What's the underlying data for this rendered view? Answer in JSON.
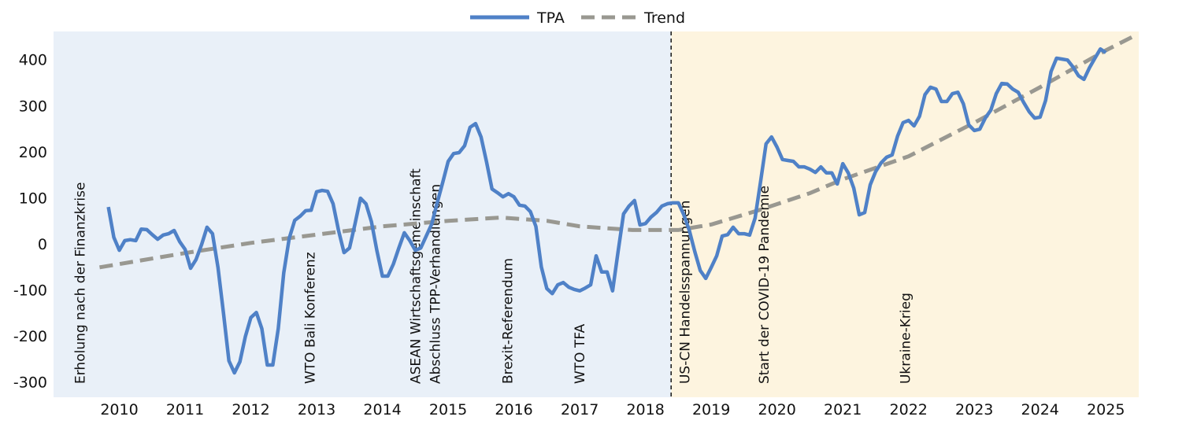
{
  "chart_data": {
    "type": "line",
    "title": "",
    "xlabel": "",
    "ylabel": "",
    "xlim": [
      2009.0,
      2025.5
    ],
    "ylim": [
      -333,
      461
    ],
    "grid": false,
    "legend_placement": "top-center",
    "x_ticks": [
      "2010",
      "2011",
      "2012",
      "2013",
      "2014",
      "2015",
      "2016",
      "2017",
      "2018",
      "2019",
      "2020",
      "2021",
      "2022",
      "2023",
      "2024",
      "2025"
    ],
    "y_ticks": [
      400,
      300,
      200,
      100,
      0,
      -100,
      -200,
      -300
    ],
    "legend": [
      {
        "name": "TPA",
        "style": "solid",
        "color": "#4f81c7"
      },
      {
        "name": "Trend",
        "style": "dashed",
        "color": "#999891"
      }
    ],
    "series": [
      {
        "name": "TPA",
        "color": "#4f81c7",
        "x_start": "2009-11",
        "frequency": "monthly",
        "values": [
          80,
          14,
          -14,
          7,
          9,
          7,
          32,
          31,
          20,
          10,
          19,
          22,
          29,
          5,
          -12,
          -53,
          -34,
          -2,
          36,
          22,
          -51,
          -150,
          -254,
          -280,
          -256,
          -201,
          -160,
          -149,
          -184,
          -263,
          -263,
          -184,
          -63,
          12,
          51,
          60,
          72,
          73,
          113,
          116,
          114,
          87,
          29,
          -19,
          -9,
          43,
          99,
          87,
          48,
          -15,
          -70,
          -70,
          -44,
          -9,
          24,
          7,
          -14,
          -9,
          17,
          43,
          89,
          133,
          179,
          196,
          198,
          213,
          253,
          261,
          232,
          178,
          119,
          111,
          102,
          109,
          102,
          84,
          82,
          70,
          38,
          -50,
          -97,
          -108,
          -89,
          -84,
          -94,
          -99,
          -102,
          -96,
          -89,
          -26,
          -61,
          -61,
          -102,
          -17,
          65,
          82,
          94,
          41,
          44,
          58,
          68,
          82,
          87,
          89,
          89,
          63,
          29,
          -17,
          -58,
          -75,
          -51,
          -26,
          17,
          20,
          36,
          22,
          22,
          19,
          56,
          135,
          217,
          232,
          210,
          183,
          181,
          179,
          167,
          167,
          162,
          155,
          167,
          154,
          154,
          130,
          174,
          154,
          121,
          63,
          68,
          128,
          157,
          176,
          188,
          193,
          234,
          263,
          268,
          256,
          277,
          324,
          340,
          336,
          309,
          309,
          326,
          329,
          304,
          258,
          246,
          249,
          273,
          290,
          326,
          348,
          347,
          336,
          329,
          307,
          287,
          273,
          275,
          311,
          374,
          403,
          401,
          399,
          384,
          365,
          357,
          382,
          403,
          423,
          415
        ]
      },
      {
        "name": "Trend",
        "color": "#999891",
        "x": [
          2009.7,
          2011,
          2012,
          2013,
          2014,
          2015,
          2015.8,
          2016.5,
          2017,
          2017.8,
          2018.5,
          2019,
          2019.7,
          2020.5,
          2021,
          2022,
          2023,
          2024,
          2025,
          2025.4
        ],
        "values": [
          -51,
          -20,
          2,
          20,
          38,
          50,
          57,
          50,
          38,
          30,
          30,
          42,
          72,
          110,
          140,
          190,
          263,
          340,
          420,
          449
        ]
      }
    ],
    "regions": [
      {
        "from": 2009.0,
        "to": 2018.39,
        "color": "#e9f0f8"
      },
      {
        "from": 2018.39,
        "to": 2025.5,
        "color": "#fdf4df"
      }
    ],
    "divider_x": 2018.39,
    "annotations": [
      {
        "x": 2009.4,
        "text": "Erholung nach der Finanzkrise"
      },
      {
        "x": 2012.9,
        "text": "WTO Bali Konferenz"
      },
      {
        "x": 2014.5,
        "text": "ASEAN Wirtschaftsgemeinschaft"
      },
      {
        "x": 2014.8,
        "text": "Abschluss TPP-Verhandlungen"
      },
      {
        "x": 2015.9,
        "text": "Brexit-Referendum"
      },
      {
        "x": 2017.0,
        "text": "WTO TFA"
      },
      {
        "x": 2018.6,
        "text": "US-CN Handelsspannungen"
      },
      {
        "x": 2019.8,
        "text": "Start der COVID-19 Pandemie"
      },
      {
        "x": 2021.95,
        "text": "Ukraine-Krieg"
      }
    ]
  }
}
